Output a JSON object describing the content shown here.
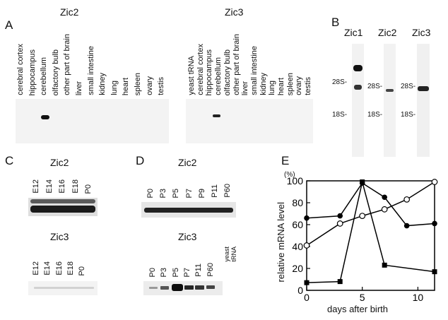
{
  "panel_a": {
    "letter": "A",
    "left_title": "Zic2",
    "right_title": "Zic3",
    "left_lanes": [
      "cerebral cortex",
      "hippocampus",
      "cerebellum",
      "olfactory bulb",
      "other part of brain",
      "liver",
      "small intestine",
      "kidney",
      "lung",
      "heart",
      "spleen",
      "ovary",
      "testis"
    ],
    "right_lanes": [
      "yeast tRNA",
      "cerebral cortex",
      "hippocampus",
      "cerebellum",
      "olfactory bulb",
      "other part of brain",
      "liver",
      "small intestine",
      "kidney",
      "lung",
      "heart",
      "spleen",
      "ovary",
      "testis"
    ]
  },
  "panel_b": {
    "letter": "B",
    "titles": [
      "Zic1",
      "Zic2",
      "Zic3"
    ],
    "m28": "28S-",
    "m18": "18S-"
  },
  "panel_c": {
    "letter": "C",
    "top_title": "Zic2",
    "bottom_title": "Zic3",
    "top_lanes": [
      "E12",
      "E14",
      "E16",
      "E18",
      "P0"
    ],
    "bottom_lanes": [
      "E12",
      "E14",
      "E16",
      "E18",
      "P0"
    ]
  },
  "panel_d": {
    "letter": "D",
    "top_title": "Zic2",
    "bottom_title": "Zic3",
    "top_lanes": [
      "P0",
      "P3",
      "P5",
      "P7",
      "P9",
      "P11",
      "P60"
    ],
    "bottom_lanes": [
      "P0",
      "P3",
      "P5",
      "P7",
      "P11",
      "P60"
    ],
    "yeast_line1": "yeast",
    "yeast_line2": "tRNA"
  },
  "panel_e": {
    "letter": "E",
    "percent": "(%)",
    "xlabel": "days after birth",
    "ylabel": "relative  mRNA level"
  },
  "chart_data": {
    "type": "line",
    "xlabel": "days after birth",
    "ylabel": "relative  mRNA level",
    "y_unit": "(%)",
    "xlim": [
      0,
      11.5
    ],
    "ylim": [
      0,
      100
    ],
    "xticks": [
      0,
      5,
      10
    ],
    "yticks": [
      0,
      20,
      40,
      60,
      80,
      100
    ],
    "series": [
      {
        "marker": "filled-circle",
        "x": [
          0,
          3,
          5,
          7,
          9,
          11.5
        ],
        "y": [
          66,
          68,
          98,
          85,
          59,
          61
        ]
      },
      {
        "marker": "open-circle",
        "x": [
          0,
          3,
          5,
          7,
          9,
          11.5
        ],
        "y": [
          41,
          61,
          68,
          74,
          83,
          99
        ]
      },
      {
        "marker": "filled-square",
        "x": [
          0,
          3,
          5,
          7,
          11.5
        ],
        "y": [
          7,
          8,
          99,
          23,
          17
        ]
      }
    ]
  }
}
